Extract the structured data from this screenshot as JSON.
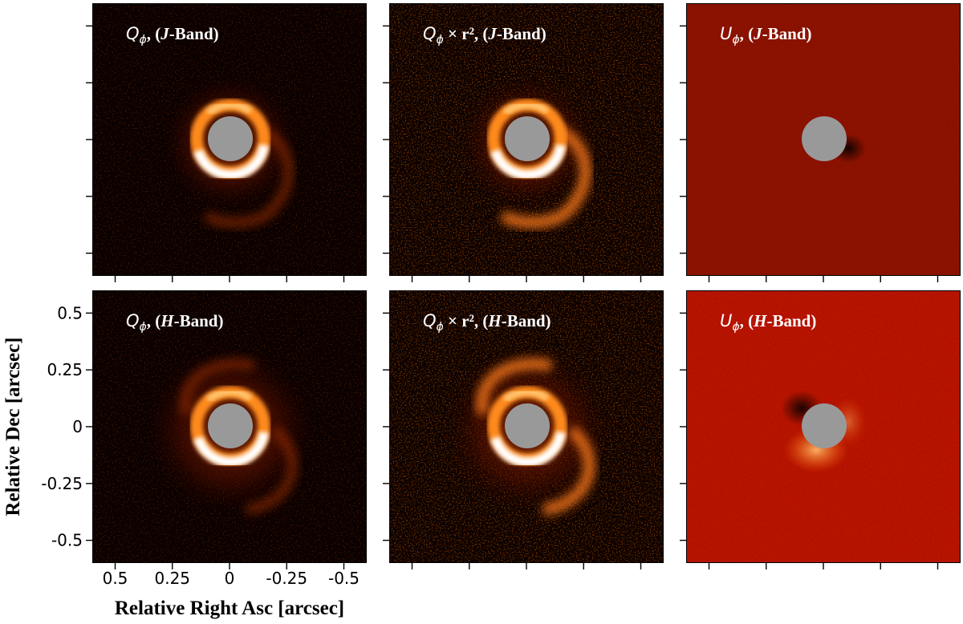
{
  "panels": [
    {
      "id": "r1c1",
      "row": 0,
      "col": 0,
      "title_sym": "Q",
      "title_sub": "ϕ",
      "title_mid": ", (",
      "title_band": "J",
      "title_rest": "-Band)",
      "kind": "Q",
      "band": "J"
    },
    {
      "id": "r1c2",
      "row": 0,
      "col": 1,
      "title_sym": "Q",
      "title_sub": "ϕ",
      "title_mid": " × r², (",
      "title_band": "J",
      "title_rest": "-Band)",
      "kind": "Qr2",
      "band": "J"
    },
    {
      "id": "r1c3",
      "row": 0,
      "col": 2,
      "title_sym": "U",
      "title_sub": "ϕ",
      "title_mid": ", (",
      "title_band": "J",
      "title_rest": "-Band)",
      "kind": "U",
      "band": "J"
    },
    {
      "id": "r2c1",
      "row": 1,
      "col": 0,
      "title_sym": "Q",
      "title_sub": "ϕ",
      "title_mid": ", (",
      "title_band": "H",
      "title_rest": "-Band)",
      "kind": "Q",
      "band": "H"
    },
    {
      "id": "r2c2",
      "row": 1,
      "col": 1,
      "title_sym": "Q",
      "title_sub": "ϕ",
      "title_mid": " × r², (",
      "title_band": "H",
      "title_rest": "-Band)",
      "kind": "Qr2",
      "band": "H"
    },
    {
      "id": "r2c3",
      "row": 1,
      "col": 2,
      "title_sym": "U",
      "title_sub": "ϕ",
      "title_mid": ", (",
      "title_band": "H",
      "title_rest": "-Band)",
      "kind": "U",
      "band": "H"
    }
  ],
  "axes": {
    "xlabel": "Relative Right Asc [arcsec]",
    "ylabel": "Relative Dec [arcsec]",
    "xticks": [
      "0.5",
      "0.25",
      "0",
      "-0.25",
      "-0.5"
    ],
    "yticks": [
      "0.5",
      "0.25",
      "0",
      "-0.25",
      "-0.5"
    ],
    "xlim": [
      0.6,
      -0.6
    ],
    "ylim": [
      -0.6,
      0.6
    ]
  },
  "colors": {
    "colormap": "gist_heat",
    "mask": "#999999",
    "u_background_J": "#8c1200",
    "u_background_H": "#b81400"
  }
}
